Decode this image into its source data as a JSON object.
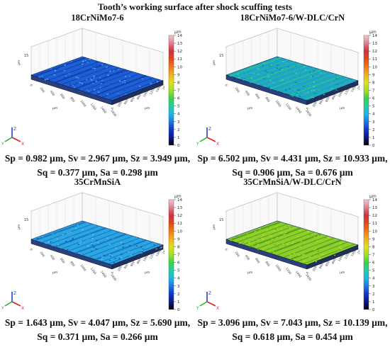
{
  "title": "Tooth’s working surface after shock scuffing tests",
  "panels": [
    {
      "name": "18CrNiMo7-6",
      "stats_line1": "Sp = 0.982 µm, Sv = 2.967 µm, Sz = 3.949 µm,",
      "stats_line2": "Sq = 0.377 µm, Sa = 0.298 µm",
      "surface_color": "#1f5fd6",
      "stripe_color": "#0d3fa8"
    },
    {
      "name": "18CrNiMo7-6/W-DLC/CrN",
      "stats_line1": "Sp = 6.502 µm, Sv = 4.431 µm, Sz = 10.933 µm,",
      "stats_line2": "Sq = 0.906 µm, Sa = 0.676 µm",
      "surface_color": "#1fa3c8",
      "stripe_color": "#28c48a"
    },
    {
      "name": "35CrMnSiA",
      "stats_line1": "Sp = 1.643 µm, Sv = 4.047 µm, Sz = 5.690 µm,",
      "stats_line2": "Sq = 0.371 µm, Sa = 0.266 µm",
      "surface_color": "#2aa6e0",
      "stripe_color": "#1a6fbf"
    },
    {
      "name": "35CrMnSiA/W-DLC/CrN",
      "stats_line1": "Sp = 3.096 µm, Sv = 7.043 µm, Sz = 10.139 µm,",
      "stats_line2": "Sq = 0.618 µm, Sa = 0.454 µm",
      "surface_color": "#8fcf2a",
      "stripe_color": "#4a9a1e"
    }
  ],
  "scale": {
    "unit": "µm",
    "ticks": [
      "14",
      "13",
      "12",
      "11",
      "10",
      "9",
      "8",
      "7",
      "6",
      "5",
      "4",
      "3",
      "2",
      "1",
      "0"
    ]
  },
  "axis_ticks": {
    "x": [
      "0",
      "200",
      "400",
      "600",
      "800",
      "1000",
      "1200",
      "1400",
      "1600"
    ],
    "y": [
      "0",
      "200",
      "400",
      "600",
      "800",
      "1000",
      "1200",
      "1400",
      "1600"
    ],
    "z": "15",
    "unit": "µm"
  },
  "axes_labels": {
    "x": "X",
    "y": "Y",
    "z": "Z"
  }
}
